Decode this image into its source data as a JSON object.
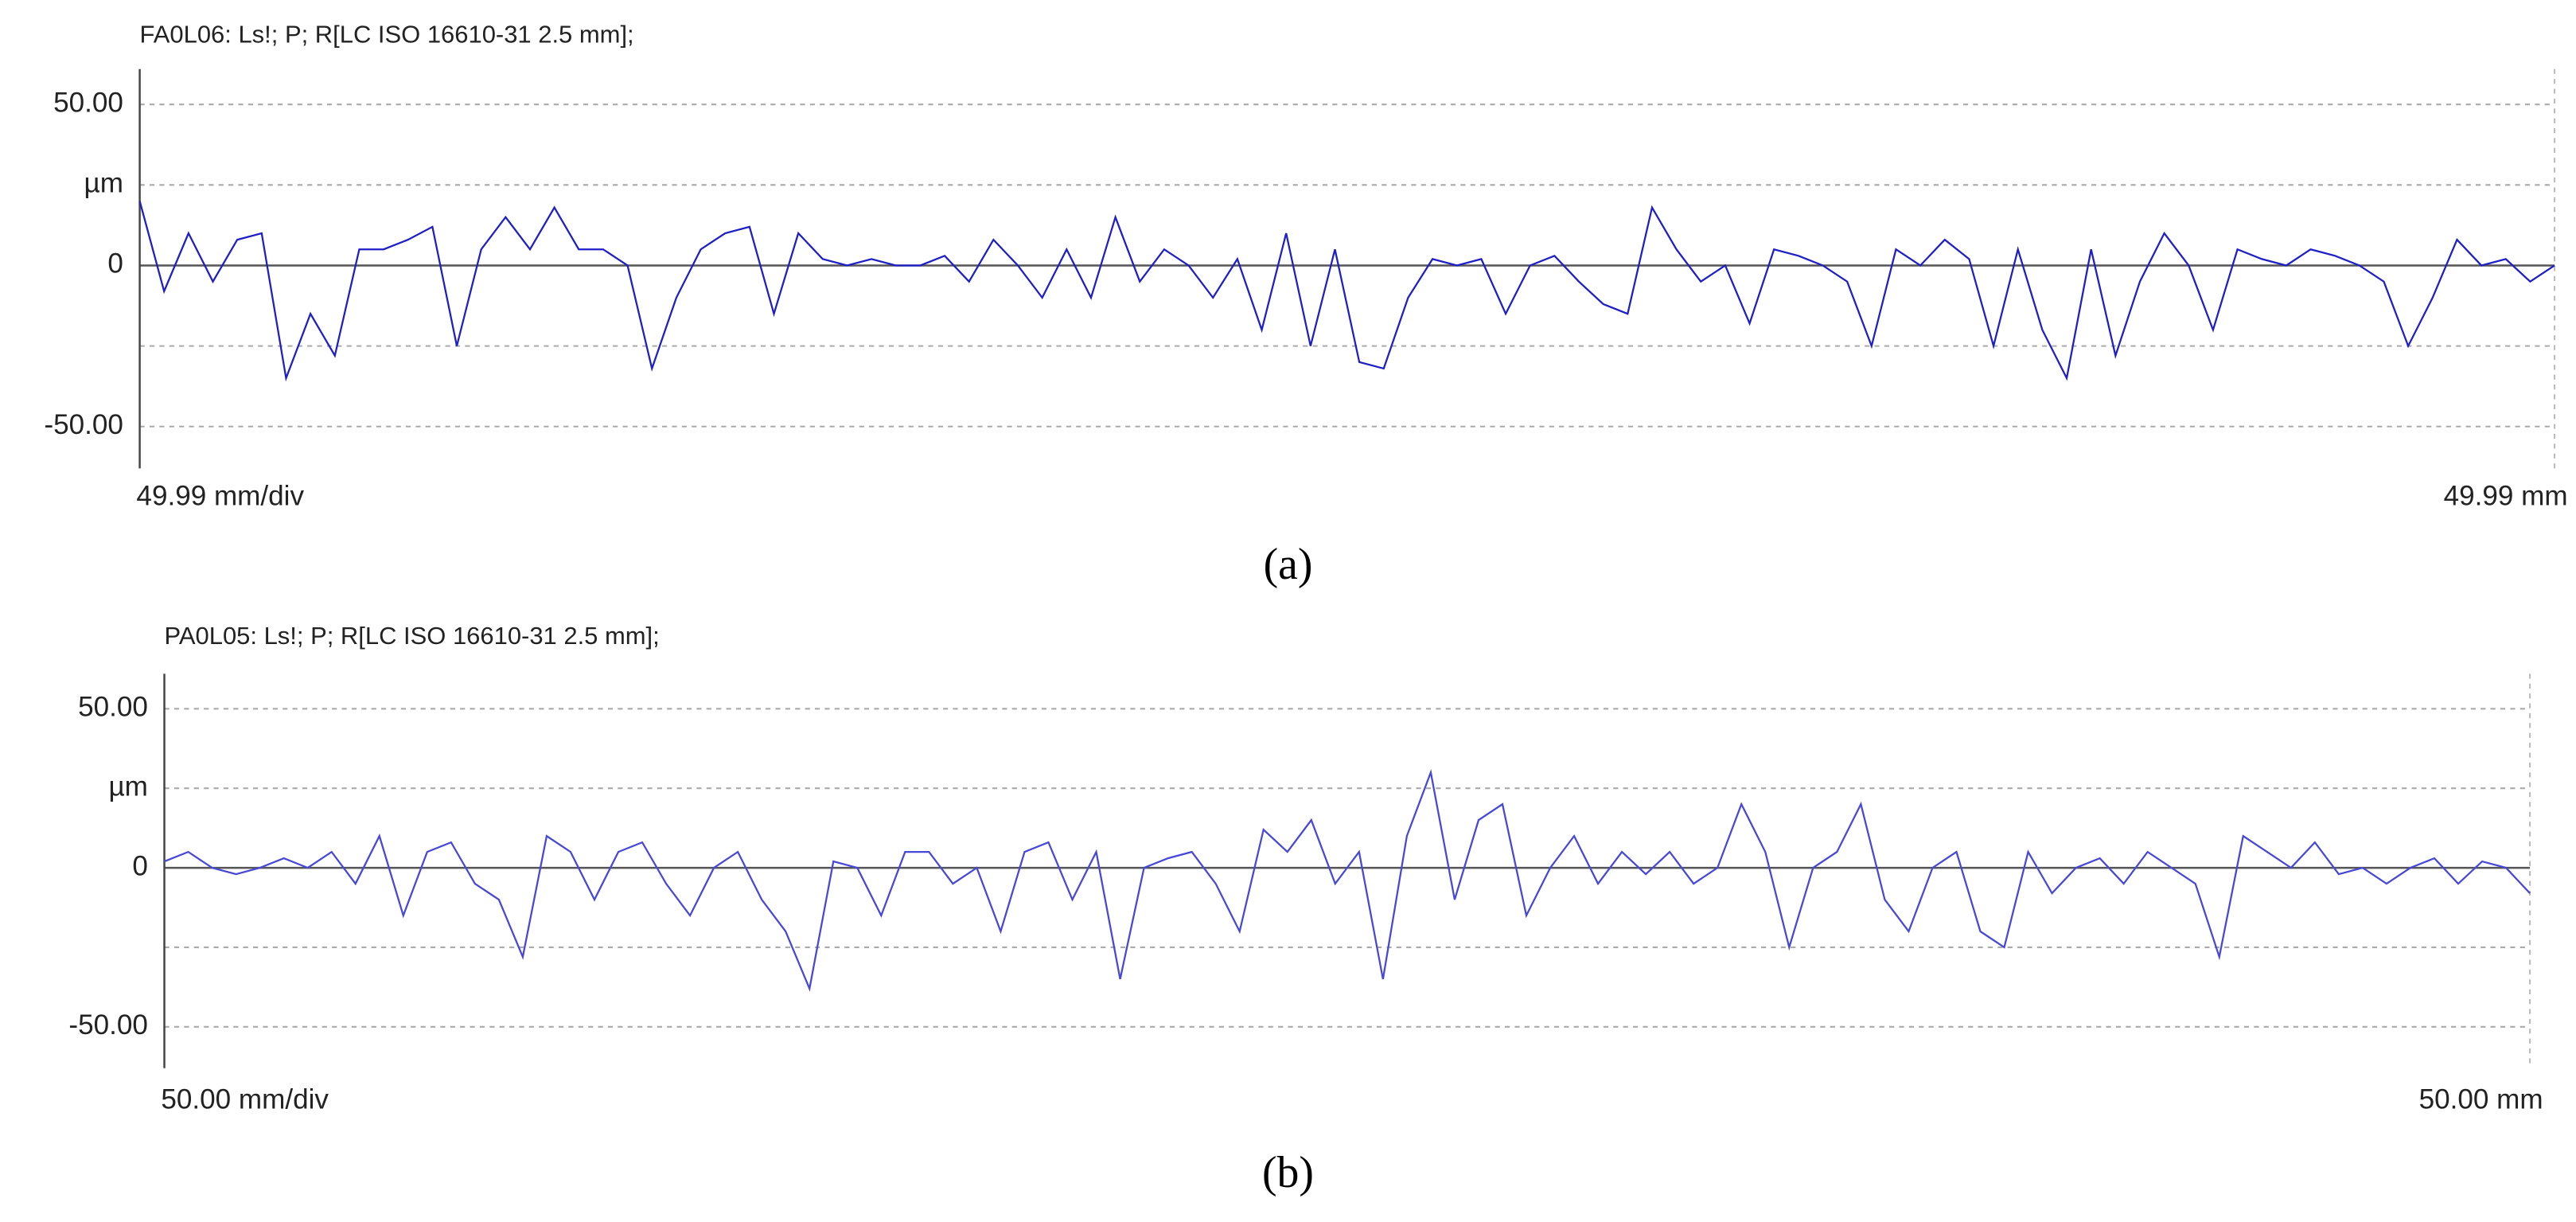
{
  "chart_data": [
    {
      "type": "line",
      "title": "FA0L06: Ls!; P; R[LC ISO 16610-31 2.5 mm];",
      "xlabel": "49.99 mm/div",
      "xlabel_end": "49.99 mm",
      "caption": "(a)",
      "xlim": [
        0,
        49.5
      ],
      "ylim": [
        -63,
        61
      ],
      "yticks": [
        {
          "value": 50,
          "label": "50.00"
        },
        {
          "value": 25,
          "label": "µm"
        },
        0,
        {
          "value": -25,
          "label": null
        },
        {
          "value": -50,
          "label": "-50.00"
        }
      ],
      "grid": true,
      "x": [
        0,
        0.5,
        1,
        1.5,
        2,
        2.5,
        3,
        3.5,
        4,
        4.5,
        5,
        5.5,
        6,
        6.5,
        7,
        7.5,
        8,
        8.5,
        9,
        9.5,
        10,
        10.5,
        11,
        11.5,
        12,
        12.5,
        13,
        13.5,
        14,
        14.5,
        15,
        15.5,
        16,
        16.5,
        17,
        17.5,
        18,
        18.5,
        19,
        19.5,
        20,
        20.5,
        21,
        21.5,
        22,
        22.5,
        23,
        23.5,
        24,
        24.5,
        25,
        25.5,
        26,
        26.5,
        27,
        27.5,
        28,
        28.5,
        29,
        29.5,
        30,
        30.5,
        31,
        31.5,
        32,
        32.5,
        33,
        33.5,
        34,
        34.5,
        35,
        35.5,
        36,
        36.5,
        37,
        37.5,
        38,
        38.5,
        39,
        39.5,
        40,
        40.5,
        41,
        41.5,
        42,
        42.5,
        43,
        43.5,
        44,
        44.5,
        45,
        45.5,
        46,
        46.5,
        47,
        47.5,
        48,
        48.5,
        49,
        49.5
      ],
      "series": [
        {
          "color": "#1f1fc8",
          "values": [
            20,
            -8,
            10,
            -5,
            8,
            10,
            -35,
            -15,
            -28,
            5,
            5,
            8,
            12,
            -25,
            5,
            15,
            5,
            18,
            5,
            5,
            0,
            -32,
            -10,
            5,
            10,
            12,
            -15,
            10,
            2,
            0,
            2,
            0,
            0,
            3,
            -5,
            8,
            0,
            -10,
            5,
            -10,
            15,
            -5,
            5,
            0,
            -10,
            2,
            -20,
            10,
            -25,
            5,
            -30,
            -32,
            -10,
            2,
            0,
            2,
            -15,
            0,
            3,
            -5,
            -12,
            -15,
            18,
            5,
            -5,
            0,
            -18,
            5,
            3,
            0,
            -5,
            -25,
            5,
            0,
            8,
            2,
            -25,
            5,
            -20,
            -35,
            5,
            -28,
            -5,
            10,
            0,
            -20,
            5,
            2,
            0,
            5,
            3,
            0,
            -5,
            -25,
            -10,
            8,
            0,
            2,
            -5,
            0
          ]
        }
      ]
    },
    {
      "type": "line",
      "title": "PA0L05: Ls!; P; R[LC ISO 16610-31 2.5 mm];",
      "xlabel": "50.00 mm/div",
      "xlabel_end": "50.00 mm",
      "caption": "(b)",
      "xlim": [
        0,
        49.5
      ],
      "ylim": [
        -63,
        61
      ],
      "yticks": [
        {
          "value": 50,
          "label": "50.00"
        },
        {
          "value": 25,
          "label": "µm"
        },
        0,
        {
          "value": -25,
          "label": null
        },
        {
          "value": -50,
          "label": "-50.00"
        }
      ],
      "grid": true,
      "x": [
        0,
        0.5,
        1,
        1.5,
        2,
        2.5,
        3,
        3.5,
        4,
        4.5,
        5,
        5.5,
        6,
        6.5,
        7,
        7.5,
        8,
        8.5,
        9,
        9.5,
        10,
        10.5,
        11,
        11.5,
        12,
        12.5,
        13,
        13.5,
        14,
        14.5,
        15,
        15.5,
        16,
        16.5,
        17,
        17.5,
        18,
        18.5,
        19,
        19.5,
        20,
        20.5,
        21,
        21.5,
        22,
        22.5,
        23,
        23.5,
        24,
        24.5,
        25,
        25.5,
        26,
        26.5,
        27,
        27.5,
        28,
        28.5,
        29,
        29.5,
        30,
        30.5,
        31,
        31.5,
        32,
        32.5,
        33,
        33.5,
        34,
        34.5,
        35,
        35.5,
        36,
        36.5,
        37,
        37.5,
        38,
        38.5,
        39,
        39.5,
        40,
        40.5,
        41,
        41.5,
        42,
        42.5,
        43,
        43.5,
        44,
        44.5,
        45,
        45.5,
        46,
        46.5,
        47,
        47.5,
        48,
        48.5,
        49,
        49.5
      ],
      "series": [
        {
          "color": "#4848d8",
          "values": [
            2,
            5,
            0,
            -2,
            0,
            3,
            0,
            5,
            -5,
            10,
            -15,
            5,
            8,
            -5,
            -10,
            -28,
            10,
            5,
            -10,
            5,
            8,
            -5,
            -15,
            0,
            5,
            -10,
            -20,
            -38,
            2,
            0,
            -15,
            5,
            5,
            -5,
            0,
            -20,
            5,
            8,
            -10,
            5,
            -35,
            0,
            3,
            5,
            -5,
            -20,
            12,
            5,
            15,
            -5,
            5,
            -35,
            10,
            30,
            -10,
            15,
            20,
            -15,
            0,
            10,
            -5,
            5,
            -2,
            5,
            -5,
            0,
            20,
            5,
            -25,
            0,
            5,
            20,
            -10,
            -20,
            0,
            5,
            -20,
            -25,
            5,
            -8,
            0,
            3,
            -5,
            5,
            0,
            -5,
            -28,
            10,
            5,
            0,
            8,
            -2,
            0,
            -5,
            0,
            3,
            -5,
            2,
            0,
            -8
          ]
        }
      ]
    }
  ]
}
